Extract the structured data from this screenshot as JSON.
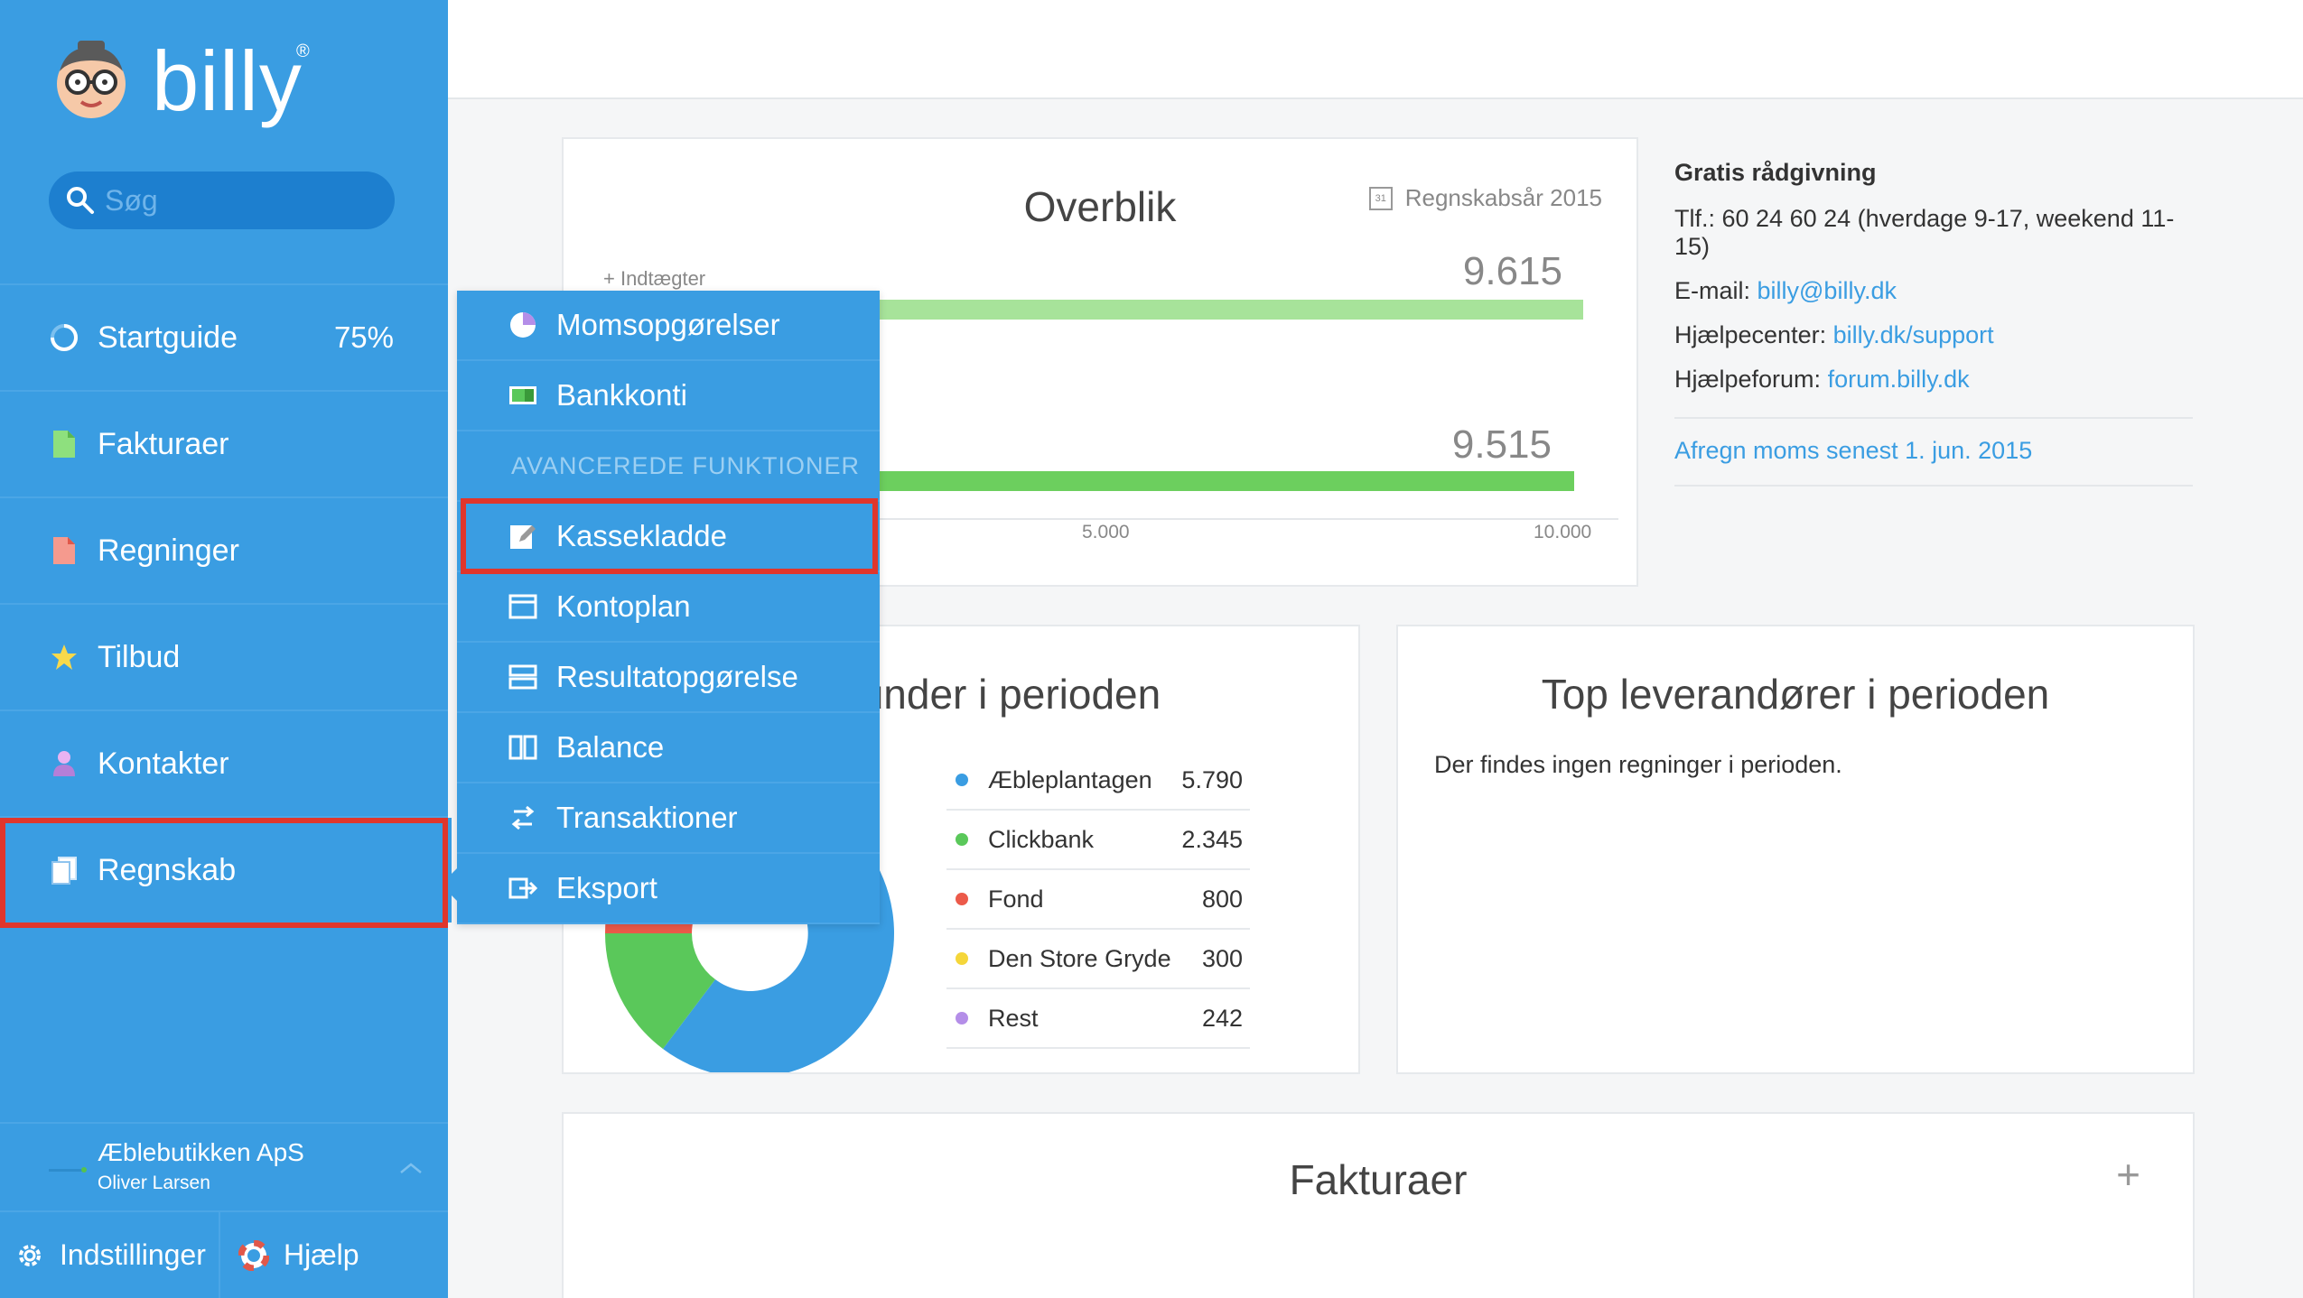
{
  "logo": {
    "text": "billy",
    "reg": "®"
  },
  "search": {
    "placeholder": "Søg"
  },
  "nav": {
    "startguide": {
      "label": "Startguide",
      "progress": "75%"
    },
    "fakturaer": "Fakturaer",
    "regninger": "Regninger",
    "tilbud": "Tilbud",
    "kontakter": "Kontakter",
    "regnskab": "Regnskab"
  },
  "company": {
    "name": "Æblebutikken ApS",
    "user": "Oliver Larsen"
  },
  "bottom": {
    "settings": "Indstillinger",
    "help": "Hjælp"
  },
  "dropdown": {
    "items": [
      "Momsopgørelser",
      "Bankkonti"
    ],
    "section": "AVANCEREDE FUNKTIONER",
    "advanced": [
      "Kassekladde",
      "Kontoplan",
      "Resultatopgørelse",
      "Balance",
      "Transaktioner",
      "Eksport"
    ]
  },
  "overview": {
    "title": "Overblik",
    "fiscal_year": "Regnskabsår 2015",
    "calendar_day": "31",
    "income_label": "+ Indtægter",
    "income_value": "9.615",
    "second_value": "9.515",
    "ticks": [
      "5.000",
      "10.000"
    ]
  },
  "chart_data": {
    "type": "bar",
    "categories": [
      "Indtægter",
      ""
    ],
    "values": [
      9615,
      9515
    ],
    "xlim": [
      0,
      10000
    ],
    "tick_labels": [
      "5.000",
      "10.000"
    ],
    "colors": [
      "#a7e39a",
      "#6ccf5e"
    ]
  },
  "info": {
    "title": "Gratis rådgivning",
    "phone": "Tlf.: 60 24 60 24 (hverdage 9-17, weekend 11-15)",
    "email_label": "E-mail: ",
    "email": "billy@billy.dk",
    "helpcenter_label": "Hjælpecenter: ",
    "helpcenter": "billy.dk/support",
    "forum_label": "Hjælpeforum: ",
    "forum": "forum.billy.dk",
    "vat_notice": "Afregn moms senest 1. jun. 2015"
  },
  "customers": {
    "title": "Top kunder i perioden",
    "rows": [
      {
        "name": "Æbleplantagen",
        "value": "5.790",
        "color": "#3a9de2"
      },
      {
        "name": "Clickbank",
        "value": "2.345",
        "color": "#5ac85a"
      },
      {
        "name": "Fond",
        "value": "800",
        "color": "#ec5a4a"
      },
      {
        "name": "Den Store Gryde",
        "value": "300",
        "color": "#f5d63a"
      },
      {
        "name": "Rest",
        "value": "242",
        "color": "#b48ee8"
      }
    ]
  },
  "suppliers": {
    "title": "Top leverandører i perioden",
    "empty": "Der findes ingen regninger i perioden."
  },
  "invoices": {
    "title": "Fakturaer",
    "plus": "+"
  }
}
